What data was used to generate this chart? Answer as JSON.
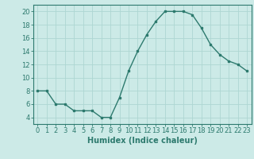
{
  "x": [
    0,
    1,
    2,
    3,
    4,
    5,
    6,
    7,
    8,
    9,
    10,
    11,
    12,
    13,
    14,
    15,
    16,
    17,
    18,
    19,
    20,
    21,
    22,
    23
  ],
  "y": [
    8,
    8,
    6,
    6,
    5,
    5,
    5,
    4,
    4,
    7,
    11,
    14,
    16.5,
    18.5,
    20,
    20,
    20,
    19.5,
    17.5,
    15,
    13.5,
    12.5,
    12,
    11
  ],
  "line_color": "#2d7a6e",
  "marker": "s",
  "marker_size": 2.0,
  "bg_color": "#cceae7",
  "grid_color": "#aed6d2",
  "xlabel": "Humidex (Indice chaleur)",
  "xlim": [
    -0.5,
    23.5
  ],
  "ylim": [
    3,
    21
  ],
  "yticks": [
    4,
    6,
    8,
    10,
    12,
    14,
    16,
    18,
    20
  ],
  "xticks": [
    0,
    1,
    2,
    3,
    4,
    5,
    6,
    7,
    8,
    9,
    10,
    11,
    12,
    13,
    14,
    15,
    16,
    17,
    18,
    19,
    20,
    21,
    22,
    23
  ],
  "xlabel_fontsize": 7,
  "tick_fontsize": 6,
  "line_width": 1.0
}
